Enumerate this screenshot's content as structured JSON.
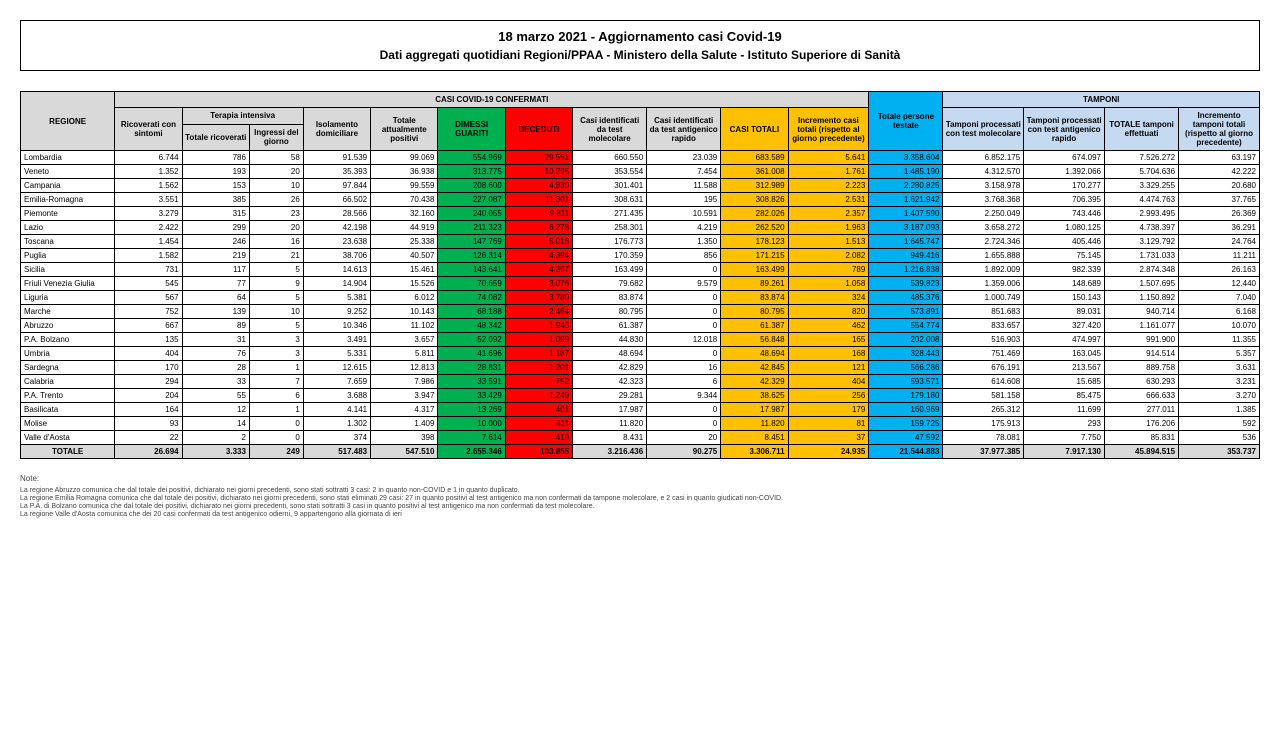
{
  "header": {
    "title": "18 marzo 2021 - Aggiornamento casi Covid-19",
    "subtitle": "Dati aggregati quotidiani Regioni/PPAA - Ministero della Salute - Istituto Superiore di Sanità"
  },
  "table": {
    "section_confermati": "CASI COVID-19 CONFERMATI",
    "section_tamponi": "TAMPONI",
    "col_regione": "REGIONE",
    "col_ricoverati": "Ricoverati con sintomi",
    "col_terapia": "Terapia intensiva",
    "col_totale_ricoverati": "Totale ricoverati",
    "col_ingressi": "Ingressi del giorno",
    "col_isolamento": "Isolamento domiciliare",
    "col_totale_positivi": "Totale attualmente positivi",
    "col_dimessi": "DIMESSI GUARITI",
    "col_deceduti": "DECEDUTI",
    "col_casi_molecolare": "Casi identificati da test molecolare",
    "col_casi_antigenico": "Casi identificati da test antigenico rapido",
    "col_casi_totali": "CASI TOTALI",
    "col_incremento": "Incremento casi totali (rispetto al giorno precedente)",
    "col_testate": "Totale persone testate",
    "col_tamponi_molecolare": "Tamponi processati con test molecolare",
    "col_tamponi_antigenico": "Tamponi processati con test antigenico rapido",
    "col_totale_tamponi": "TOTALE tamponi effettuati",
    "col_incremento_tamponi": "Incremento tamponi totali (rispetto al giorno precedente)",
    "total_label": "TOTALE",
    "rows": [
      {
        "regione": "Lombardia",
        "ricoverati": "6.744",
        "tot_ricoverati": "786",
        "ingressi": "58",
        "isolamento": "91.539",
        "tot_positivi": "99.069",
        "dimessi": "554.969",
        "deceduti": "29.551",
        "casi_mol": "660.550",
        "casi_ant": "23.039",
        "casi_tot": "683.589",
        "incr": "5.641",
        "testate": "3.358.604",
        "tamp_mol": "6.852.175",
        "tamp_ant": "674.097",
        "tot_tamp": "7.526.272",
        "incr_tamp": "63.197"
      },
      {
        "regione": "Veneto",
        "ricoverati": "1.352",
        "tot_ricoverati": "193",
        "ingressi": "20",
        "isolamento": "35.393",
        "tot_positivi": "36.938",
        "dimessi": "313.775",
        "deceduti": "10.295",
        "casi_mol": "353.554",
        "casi_ant": "7.454",
        "casi_tot": "361.008",
        "incr": "1.761",
        "testate": "1.485.190",
        "tamp_mol": "4.312.570",
        "tamp_ant": "1.392.066",
        "tot_tamp": "5.704.636",
        "incr_tamp": "42.222"
      },
      {
        "regione": "Campania",
        "ricoverati": "1.562",
        "tot_ricoverati": "153",
        "ingressi": "10",
        "isolamento": "97.844",
        "tot_positivi": "99.559",
        "dimessi": "208.600",
        "deceduti": "4.830",
        "casi_mol": "301.401",
        "casi_ant": "11.588",
        "casi_tot": "312.989",
        "incr": "2.223",
        "testate": "2.280.825",
        "tamp_mol": "3.158.978",
        "tamp_ant": "170.277",
        "tot_tamp": "3.329.255",
        "incr_tamp": "20.680"
      },
      {
        "regione": "Emilia-Romagna",
        "ricoverati": "3.551",
        "tot_ricoverati": "385",
        "ingressi": "26",
        "isolamento": "66.502",
        "tot_positivi": "70.438",
        "dimessi": "227.087",
        "deceduti": "11.301",
        "casi_mol": "308.631",
        "casi_ant": "195",
        "casi_tot": "308.826",
        "incr": "2.531",
        "testate": "1.621.942",
        "tamp_mol": "3.768.368",
        "tamp_ant": "706.395",
        "tot_tamp": "4.474.763",
        "incr_tamp": "37.765"
      },
      {
        "regione": "Piemonte",
        "ricoverati": "3.279",
        "tot_ricoverati": "315",
        "ingressi": "23",
        "isolamento": "28.566",
        "tot_positivi": "32.160",
        "dimessi": "240.055",
        "deceduti": "9.811",
        "casi_mol": "271.435",
        "casi_ant": "10.591",
        "casi_tot": "282.026",
        "incr": "2.357",
        "testate": "1.407.590",
        "tamp_mol": "2.250.049",
        "tamp_ant": "743.446",
        "tot_tamp": "2.993.495",
        "incr_tamp": "26.369"
      },
      {
        "regione": "Lazio",
        "ricoverati": "2.422",
        "tot_ricoverati": "299",
        "ingressi": "20",
        "isolamento": "42.198",
        "tot_positivi": "44.919",
        "dimessi": "211.323",
        "deceduti": "6.278",
        "casi_mol": "258.301",
        "casi_ant": "4.219",
        "casi_tot": "262.520",
        "incr": "1.963",
        "testate": "3.187.093",
        "tamp_mol": "3.658.272",
        "tamp_ant": "1.080.125",
        "tot_tamp": "4.738.397",
        "incr_tamp": "36.291"
      },
      {
        "regione": "Toscana",
        "ricoverati": "1.454",
        "tot_ricoverati": "246",
        "ingressi": "16",
        "isolamento": "23.638",
        "tot_positivi": "25.338",
        "dimessi": "147.769",
        "deceduti": "5.016",
        "casi_mol": "176.773",
        "casi_ant": "1.350",
        "casi_tot": "178.123",
        "incr": "1.513",
        "testate": "1.645.747",
        "tamp_mol": "2.724.346",
        "tamp_ant": "405.446",
        "tot_tamp": "3.129.792",
        "incr_tamp": "24.764"
      },
      {
        "regione": "Puglia",
        "ricoverati": "1.582",
        "tot_ricoverati": "219",
        "ingressi": "21",
        "isolamento": "38.706",
        "tot_positivi": "40.507",
        "dimessi": "126.314",
        "deceduti": "4.394",
        "casi_mol": "170.359",
        "casi_ant": "856",
        "casi_tot": "171.215",
        "incr": "2.082",
        "testate": "949.416",
        "tamp_mol": "1.655.888",
        "tamp_ant": "75.145",
        "tot_tamp": "1.731.033",
        "incr_tamp": "11.211"
      },
      {
        "regione": "Sicilia",
        "ricoverati": "731",
        "tot_ricoverati": "117",
        "ingressi": "5",
        "isolamento": "14.613",
        "tot_positivi": "15.461",
        "dimessi": "143.641",
        "deceduti": "4.397",
        "casi_mol": "163.499",
        "casi_ant": "0",
        "casi_tot": "163.499",
        "incr": "789",
        "testate": "1.216.838",
        "tamp_mol": "1.892.009",
        "tamp_ant": "982.339",
        "tot_tamp": "2.874.348",
        "incr_tamp": "26.163"
      },
      {
        "regione": "Friuli Venezia Giulia",
        "ricoverati": "545",
        "tot_ricoverati": "77",
        "ingressi": "9",
        "isolamento": "14.904",
        "tot_positivi": "15.526",
        "dimessi": "70.659",
        "deceduti": "3.076",
        "casi_mol": "79.682",
        "casi_ant": "9.579",
        "casi_tot": "89.261",
        "incr": "1.058",
        "testate": "539.823",
        "tamp_mol": "1.359.006",
        "tamp_ant": "148.689",
        "tot_tamp": "1.507.695",
        "incr_tamp": "12.440"
      },
      {
        "regione": "Liguria",
        "ricoverati": "567",
        "tot_ricoverati": "64",
        "ingressi": "5",
        "isolamento": "5.381",
        "tot_positivi": "6.012",
        "dimessi": "74.082",
        "deceduti": "3.780",
        "casi_mol": "83.874",
        "casi_ant": "0",
        "casi_tot": "83.874",
        "incr": "324",
        "testate": "485.376",
        "tamp_mol": "1.000.749",
        "tamp_ant": "150.143",
        "tot_tamp": "1.150.892",
        "incr_tamp": "7.040"
      },
      {
        "regione": "Marche",
        "ricoverati": "752",
        "tot_ricoverati": "139",
        "ingressi": "10",
        "isolamento": "9.252",
        "tot_positivi": "10.143",
        "dimessi": "68.188",
        "deceduti": "2.464",
        "casi_mol": "80.795",
        "casi_ant": "0",
        "casi_tot": "80.795",
        "incr": "820",
        "testate": "573.891",
        "tamp_mol": "851.683",
        "tamp_ant": "89.031",
        "tot_tamp": "940.714",
        "incr_tamp": "6.168"
      },
      {
        "regione": "Abruzzo",
        "ricoverati": "667",
        "tot_ricoverati": "89",
        "ingressi": "5",
        "isolamento": "10.346",
        "tot_positivi": "11.102",
        "dimessi": "48.342",
        "deceduti": "1.943",
        "casi_mol": "61.387",
        "casi_ant": "0",
        "casi_tot": "61.387",
        "incr": "462",
        "testate": "554.774",
        "tamp_mol": "833.657",
        "tamp_ant": "327.420",
        "tot_tamp": "1.161.077",
        "incr_tamp": "10.070"
      },
      {
        "regione": "P.A. Bolzano",
        "ricoverati": "135",
        "tot_ricoverati": "31",
        "ingressi": "3",
        "isolamento": "3.491",
        "tot_positivi": "3.657",
        "dimessi": "52.092",
        "deceduti": "1.099",
        "casi_mol": "44.830",
        "casi_ant": "12.018",
        "casi_tot": "56.848",
        "incr": "165",
        "testate": "202.008",
        "tamp_mol": "516.903",
        "tamp_ant": "474.997",
        "tot_tamp": "991.900",
        "incr_tamp": "11.355"
      },
      {
        "regione": "Umbria",
        "ricoverati": "404",
        "tot_ricoverati": "76",
        "ingressi": "3",
        "isolamento": "5.331",
        "tot_positivi": "5.811",
        "dimessi": "41.696",
        "deceduti": "1.187",
        "casi_mol": "48.694",
        "casi_ant": "0",
        "casi_tot": "48.694",
        "incr": "168",
        "testate": "328.443",
        "tamp_mol": "751.469",
        "tamp_ant": "163.045",
        "tot_tamp": "914.514",
        "incr_tamp": "5.357"
      },
      {
        "regione": "Sardegna",
        "ricoverati": "170",
        "tot_ricoverati": "28",
        "ingressi": "1",
        "isolamento": "12.615",
        "tot_positivi": "12.813",
        "dimessi": "28.831",
        "deceduti": "1.201",
        "casi_mol": "42.829",
        "casi_ant": "16",
        "casi_tot": "42.845",
        "incr": "121",
        "testate": "566.286",
        "tamp_mol": "676.191",
        "tamp_ant": "213.567",
        "tot_tamp": "889.758",
        "incr_tamp": "3.631"
      },
      {
        "regione": "Calabria",
        "ricoverati": "294",
        "tot_ricoverati": "33",
        "ingressi": "7",
        "isolamento": "7.659",
        "tot_positivi": "7.986",
        "dimessi": "33.591",
        "deceduti": "752",
        "casi_mol": "42.323",
        "casi_ant": "6",
        "casi_tot": "42.329",
        "incr": "404",
        "testate": "593.571",
        "tamp_mol": "614.608",
        "tamp_ant": "15.685",
        "tot_tamp": "630.293",
        "incr_tamp": "3.231"
      },
      {
        "regione": "P.A. Trento",
        "ricoverati": "204",
        "tot_ricoverati": "55",
        "ingressi": "6",
        "isolamento": "3.688",
        "tot_positivi": "3.947",
        "dimessi": "33.429",
        "deceduti": "1.249",
        "casi_mol": "29.281",
        "casi_ant": "9.344",
        "casi_tot": "38.625",
        "incr": "256",
        "testate": "179.180",
        "tamp_mol": "581.158",
        "tamp_ant": "85.475",
        "tot_tamp": "666.633",
        "incr_tamp": "3.270"
      },
      {
        "regione": "Basilicata",
        "ricoverati": "164",
        "tot_ricoverati": "12",
        "ingressi": "1",
        "isolamento": "4.141",
        "tot_positivi": "4.317",
        "dimessi": "13.269",
        "deceduti": "401",
        "casi_mol": "17.987",
        "casi_ant": "0",
        "casi_tot": "17.987",
        "incr": "179",
        "testate": "160.969",
        "tamp_mol": "265.312",
        "tamp_ant": "11.699",
        "tot_tamp": "277.011",
        "incr_tamp": "1.385"
      },
      {
        "regione": "Molise",
        "ricoverati": "93",
        "tot_ricoverati": "14",
        "ingressi": "0",
        "isolamento": "1.302",
        "tot_positivi": "1.409",
        "dimessi": "10.000",
        "deceduti": "411",
        "casi_mol": "11.820",
        "casi_ant": "0",
        "casi_tot": "11.820",
        "incr": "81",
        "testate": "159.725",
        "tamp_mol": "175.913",
        "tamp_ant": "293",
        "tot_tamp": "176.206",
        "incr_tamp": "592"
      },
      {
        "regione": "Valle d'Aosta",
        "ricoverati": "22",
        "tot_ricoverati": "2",
        "ingressi": "0",
        "isolamento": "374",
        "tot_positivi": "398",
        "dimessi": "7.614",
        "deceduti": "419",
        "casi_mol": "8.431",
        "casi_ant": "20",
        "casi_tot": "8.451",
        "incr": "37",
        "testate": "47.592",
        "tamp_mol": "78.081",
        "tamp_ant": "7.750",
        "tot_tamp": "85.831",
        "incr_tamp": "536"
      }
    ],
    "totals": {
      "ricoverati": "26.694",
      "tot_ricoverati": "3.333",
      "ingressi": "249",
      "isolamento": "517.483",
      "tot_positivi": "547.510",
      "dimessi": "2.655.346",
      "deceduti": "103.855",
      "casi_mol": "3.216.436",
      "casi_ant": "90.275",
      "casi_tot": "3.306.711",
      "incr": "24.935",
      "testate": "21.544.883",
      "tamp_mol": "37.977.385",
      "tamp_ant": "7.917.130",
      "tot_tamp": "45.894.515",
      "incr_tamp": "353.737"
    }
  },
  "notes": {
    "title": "Note:",
    "lines": [
      "La regione Abruzzo comunica che dal totale dei positivi, dichiarato nei giorni precedenti, sono stati sottratti 3 casi: 2 in quanto non-COVID e 1 in quanto duplicato.",
      "La regione Emilia Romagna comunica che dal totale dei positivi, dichiarato nei giorni precedenti, sono stati eliminati 29 casi: 27 in quanto positivi al test antigenico ma non confermati da tampone molecolare, e 2 casi in quanto giudicati non-COVID.",
      "La P.A. di Bolzano comunica che dal totale dei positivi, dichiarato nei giorni precedenti, sono stati sottratti 3 casi in quanto positivi al test antigenico ma non confermati da test molecolare.",
      "La regione Valle d'Aosta comunica che dei 20 casi confermati da test antigenico odierni, 9 appartengono alla giornata di ieri"
    ]
  },
  "styling": {
    "colors": {
      "header_bg": "#d9d9d9",
      "dimessi_bg": "#00b050",
      "deceduti_bg": "#ff0000",
      "casi_totali_bg": "#ffc000",
      "testate_bg": "#00b0f0",
      "tamponi_section_bg": "#c5d9f1",
      "border": "#000000",
      "page_bg": "#ffffff"
    },
    "fonts": {
      "header_title_pt": 13,
      "header_subtitle_pt": 12,
      "table_header_pt": 8,
      "table_cell_pt": 8,
      "notes_pt": 7
    }
  }
}
